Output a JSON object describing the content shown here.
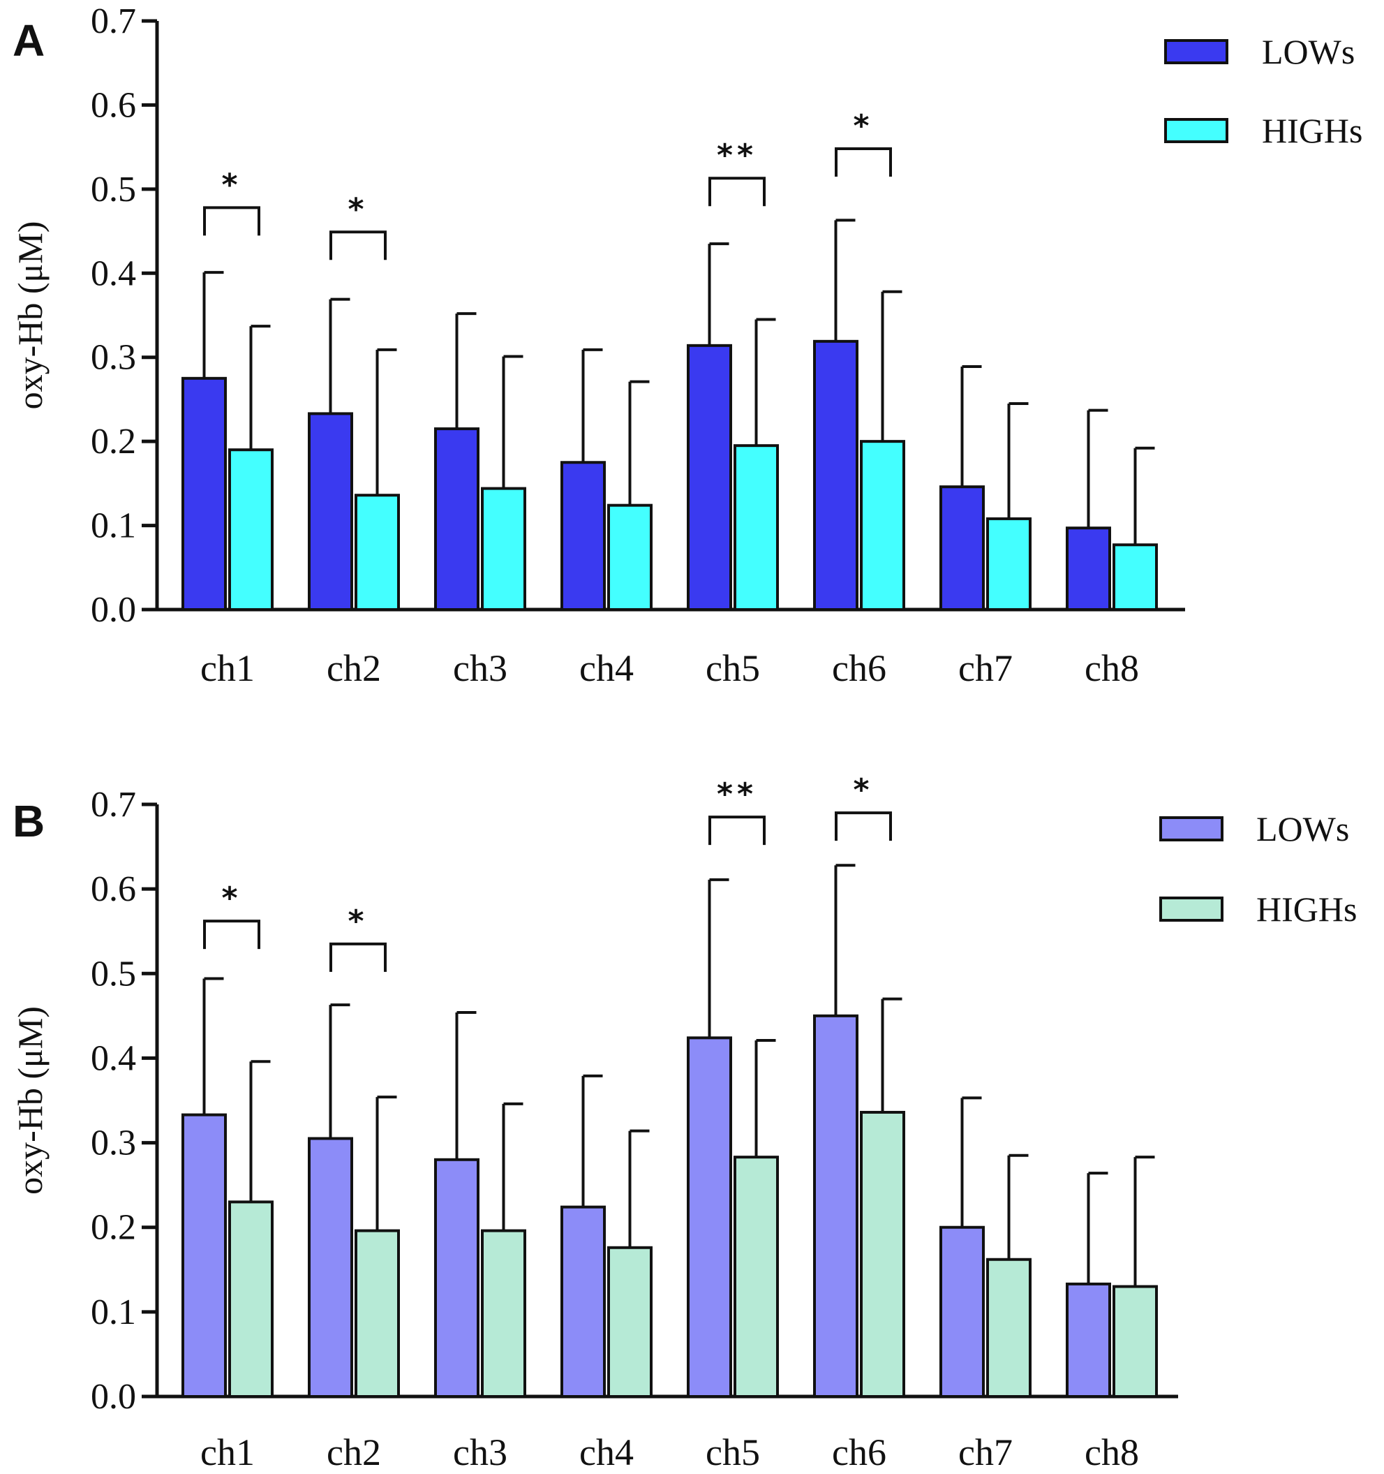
{
  "colors": {
    "A_lows": "#3a3af0",
    "A_highs": "#44ffff",
    "B_lows": "#8c8cf8",
    "B_highs": "#b6ead6",
    "ink": "#111111"
  },
  "chart_data": [
    {
      "panel": "A",
      "type": "bar",
      "ylabel": "oxy-Hb (μM)",
      "xlabel": "",
      "ylim": [
        0,
        0.7
      ],
      "yticks": [
        "0.0",
        "0.1",
        "0.2",
        "0.3",
        "0.4",
        "0.5",
        "0.6",
        "0.7"
      ],
      "categories": [
        "ch1",
        "ch2",
        "ch3",
        "ch4",
        "ch5",
        "ch6",
        "ch7",
        "ch8"
      ],
      "legend_position": "top-right",
      "series": [
        {
          "name": "LOWs",
          "color": "#3a3af0",
          "values": [
            0.275,
            0.233,
            0.215,
            0.175,
            0.314,
            0.319,
            0.146,
            0.097
          ],
          "error_upper": [
            0.401,
            0.369,
            0.352,
            0.309,
            0.435,
            0.463,
            0.289,
            0.237
          ]
        },
        {
          "name": "HIGHs",
          "color": "#44ffff",
          "values": [
            0.19,
            0.136,
            0.144,
            0.124,
            0.195,
            0.2,
            0.108,
            0.077
          ],
          "error_upper": [
            0.337,
            0.309,
            0.301,
            0.271,
            0.345,
            0.378,
            0.245,
            0.192
          ]
        }
      ],
      "significance": [
        {
          "category": "ch1",
          "label": "*",
          "bracket_y": 0.478
        },
        {
          "category": "ch2",
          "label": "*",
          "bracket_y": 0.449
        },
        {
          "category": "ch5",
          "label": "**",
          "bracket_y": 0.513
        },
        {
          "category": "ch6",
          "label": "*",
          "bracket_y": 0.548
        }
      ]
    },
    {
      "panel": "B",
      "type": "bar",
      "ylabel": "oxy-Hb (μM)",
      "xlabel": "",
      "ylim": [
        0,
        0.7
      ],
      "yticks": [
        "0.0",
        "0.1",
        "0.2",
        "0.3",
        "0.4",
        "0.5",
        "0.6",
        "0.7"
      ],
      "categories": [
        "ch1",
        "ch2",
        "ch3",
        "ch4",
        "ch5",
        "ch6",
        "ch7",
        "ch8"
      ],
      "legend_position": "top-right",
      "series": [
        {
          "name": "LOWs",
          "color": "#8c8cf8",
          "values": [
            0.333,
            0.305,
            0.28,
            0.224,
            0.424,
            0.45,
            0.2,
            0.133
          ],
          "error_upper": [
            0.494,
            0.463,
            0.454,
            0.379,
            0.611,
            0.628,
            0.353,
            0.264
          ]
        },
        {
          "name": "HIGHs",
          "color": "#b6ead6",
          "values": [
            0.23,
            0.196,
            0.196,
            0.176,
            0.283,
            0.336,
            0.162,
            0.13
          ],
          "error_upper": [
            0.396,
            0.354,
            0.346,
            0.314,
            0.421,
            0.47,
            0.285,
            0.283
          ]
        }
      ],
      "significance": [
        {
          "category": "ch1",
          "label": "*",
          "bracket_y": 0.562
        },
        {
          "category": "ch2",
          "label": "*",
          "bracket_y": 0.535
        },
        {
          "category": "ch5",
          "label": "**",
          "bracket_y": 0.685
        },
        {
          "category": "ch6",
          "label": "*",
          "bracket_y": 0.69
        }
      ]
    }
  ]
}
